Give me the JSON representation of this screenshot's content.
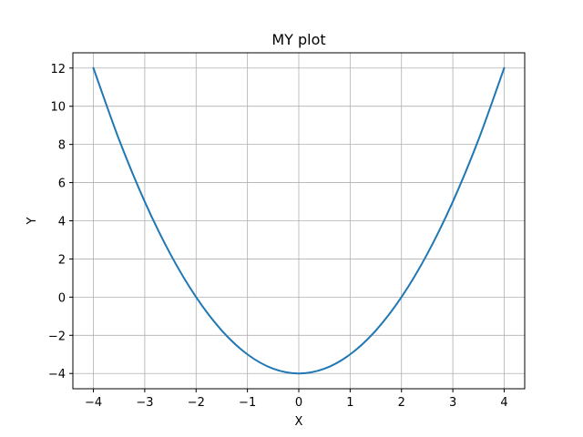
{
  "chart_data": {
    "type": "line",
    "title": "MY plot",
    "xlabel": "X",
    "ylabel": "Y",
    "xlim": [
      -4.4,
      4.4
    ],
    "ylim": [
      -4.8,
      12.8
    ],
    "xticks": [
      -4,
      -3,
      -2,
      -1,
      0,
      1,
      2,
      3,
      4
    ],
    "xtick_labels": [
      "−4",
      "−3",
      "−2",
      "−1",
      "0",
      "1",
      "2",
      "3",
      "4"
    ],
    "yticks": [
      -4,
      -2,
      0,
      2,
      4,
      6,
      8,
      10,
      12
    ],
    "ytick_labels": [
      "−4",
      "−2",
      "0",
      "2",
      "4",
      "6",
      "8",
      "10",
      "12"
    ],
    "grid": true,
    "series": [
      {
        "color": "#1f77b4",
        "x": [
          -4,
          -3.5,
          -3,
          -2.5,
          -2,
          -1.5,
          -1,
          -0.5,
          0,
          0.5,
          1,
          1.5,
          2,
          2.5,
          3,
          3.5,
          4
        ],
        "y": [
          12,
          8.25,
          5,
          2.25,
          0,
          -1.75,
          -3,
          -3.75,
          -4,
          -3.75,
          -3,
          -1.75,
          0,
          2.25,
          5,
          8.25,
          12
        ]
      }
    ]
  },
  "colors": {
    "grid": "#b0b0b0",
    "axes": "#000000",
    "background": "#ffffff"
  }
}
